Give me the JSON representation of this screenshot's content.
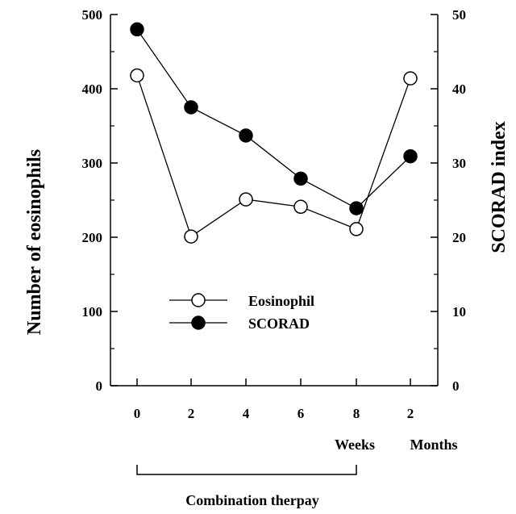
{
  "chart_data": {
    "type": "line",
    "x_tick_labels": [
      "0",
      "2",
      "4",
      "6",
      "8",
      "2"
    ],
    "x_unit_labels": [
      "Weeks",
      "Months"
    ],
    "left_axis": {
      "label": "Number of eosinophils",
      "ylim": [
        0,
        500
      ],
      "ticks": [
        "0",
        "100",
        "200",
        "300",
        "400",
        "500"
      ]
    },
    "right_axis": {
      "label": "SCORAD index",
      "ylim": [
        0,
        50
      ],
      "ticks": [
        "0",
        "10",
        "20",
        "30",
        "40",
        "50"
      ]
    },
    "series": [
      {
        "name": "Eosinophil",
        "axis": "left",
        "marker": "open-circle",
        "values": [
          418,
          201,
          251,
          241,
          211,
          414
        ]
      },
      {
        "name": "SCORAD",
        "axis": "right",
        "marker": "filled-circle",
        "values": [
          48,
          37.5,
          33.7,
          27.9,
          23.9,
          30.9
        ]
      }
    ],
    "legend_placement": "center-bottom",
    "grid": false,
    "bracket_label": "Combination therpay"
  }
}
